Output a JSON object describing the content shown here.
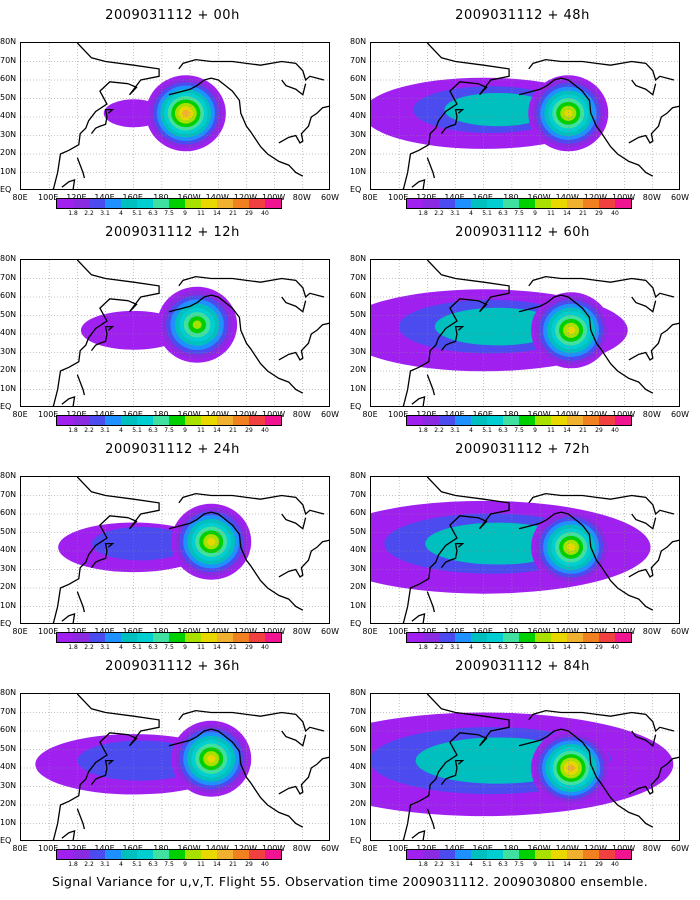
{
  "caption": "Signal Variance for u,v,T. Flight 55. Observation time 2009031112. 2009030800 ensemble.",
  "colorbar": {
    "labels": [
      "1.8",
      "2.2",
      "3.1",
      "4",
      "5.1",
      "6.3",
      "7.5",
      "9",
      "11",
      "14",
      "21",
      "29",
      "40"
    ],
    "colors": [
      "#a020f0",
      "#8a2be2",
      "#4b4bf0",
      "#1e90ff",
      "#00bfbf",
      "#00ced1",
      "#40e0a0",
      "#00d000",
      "#a8e000",
      "#e8d800",
      "#f0b030",
      "#f08020",
      "#f04040",
      "#f01490"
    ],
    "labels_last": [
      "1.8",
      "2.2",
      "3.1",
      "4",
      "5.1",
      "6.3",
      "7.5",
      "9",
      "11",
      "14",
      "21",
      "29",
      "40"
    ]
  },
  "axes": {
    "y_ticks": [
      "EQ",
      "10N",
      "20N",
      "30N",
      "40N",
      "50N",
      "60N",
      "70N",
      "80N"
    ],
    "x_ticks": [
      "80E",
      "100E",
      "120E",
      "140E",
      "160E",
      "180",
      "160W",
      "140W",
      "120W",
      "100W",
      "80W",
      "60W"
    ]
  },
  "chart_data": [
    {
      "type": "heatmap",
      "title": "2009031112 + 00h",
      "forecast_hour": 0,
      "max_level": "40",
      "blobs": [
        {
          "lon": -163,
          "lat": 42,
          "levels": 11
        }
      ]
    },
    {
      "type": "heatmap",
      "title": "2009031112 + 12h",
      "forecast_hour": 12,
      "max_level": "21",
      "blobs": [
        {
          "lon": -155,
          "lat": 45,
          "levels": 9
        }
      ]
    },
    {
      "type": "heatmap",
      "title": "2009031112 + 24h",
      "forecast_hour": 24,
      "max_level": "21",
      "blobs": [
        {
          "lon": -145,
          "lat": 45,
          "levels": 10
        }
      ]
    },
    {
      "type": "heatmap",
      "title": "2009031112 + 36h",
      "forecast_hour": 36,
      "max_level": "21",
      "blobs": [
        {
          "lon": -145,
          "lat": 45,
          "levels": 10
        }
      ]
    },
    {
      "type": "heatmap",
      "title": "2009031112 + 48h",
      "forecast_hour": 48,
      "max_level": "21",
      "blobs": [
        {
          "lon": -140,
          "lat": 42,
          "levels": 10
        }
      ]
    },
    {
      "type": "heatmap",
      "title": "2009031112 + 60h",
      "forecast_hour": 60,
      "max_level": "21",
      "blobs": [
        {
          "lon": -138,
          "lat": 42,
          "levels": 10
        }
      ]
    },
    {
      "type": "heatmap",
      "title": "2009031112 + 72h",
      "forecast_hour": 72,
      "max_level": "21",
      "blobs": [
        {
          "lon": -138,
          "lat": 42,
          "levels": 10
        }
      ]
    },
    {
      "type": "heatmap",
      "title": "2009031112 + 84h",
      "forecast_hour": 84,
      "max_level": "29",
      "blobs": [
        {
          "lon": -138,
          "lat": 40,
          "levels": 11
        }
      ]
    }
  ]
}
